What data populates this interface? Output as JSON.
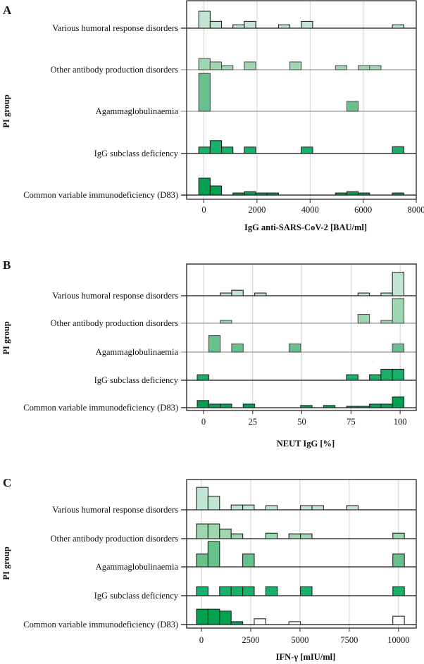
{
  "chart_data": [
    {
      "type": "histogram-ridgeline",
      "panel_label": "A",
      "xlabel": "IgG anti-SARS-CoV-2 [BAU/ml]",
      "ylabel": "PI group",
      "xlim": [
        -650,
        8000
      ],
      "xticks": [
        0,
        2000,
        4000,
        6000,
        8000
      ],
      "xtick_labels": [
        "0",
        "2000",
        "4000",
        "6000",
        "8000"
      ],
      "grid": "vertical",
      "bin_start": -193,
      "bin_width": 429,
      "rows": [
        {
          "label": "Various humoral response disorders",
          "color": "#c2e5d3",
          "line": "#111111",
          "bins": [
            [
              0,
              5
            ],
            [
              1,
              2
            ],
            [
              3,
              1
            ],
            [
              4,
              2
            ],
            [
              7,
              1
            ],
            [
              9,
              2
            ],
            [
              17,
              1
            ]
          ]
        },
        {
          "label": "Other antibody production disorders",
          "color": "#9ed6b0",
          "line": "#999999",
          "bins": [
            [
              0,
              3.3
            ],
            [
              1,
              2.3
            ],
            [
              2,
              1.2
            ],
            [
              4,
              2.3
            ],
            [
              8,
              2.3
            ],
            [
              12,
              1.2
            ],
            [
              14,
              1.2
            ],
            [
              15,
              1.2
            ]
          ]
        },
        {
          "label": "Agammaglobulinaemia",
          "color": "#66c18c",
          "line": "#999999",
          "bins": [
            [
              0,
              11.2
            ],
            [
              13,
              2.9
            ]
          ]
        },
        {
          "label": "IgG subclass deficiency",
          "color": "#19b06a",
          "line": "#111111",
          "bins": [
            [
              0,
              1.9
            ],
            [
              1,
              3.8
            ],
            [
              2,
              1.9
            ],
            [
              4,
              1.9
            ],
            [
              9,
              1.9
            ],
            [
              17,
              2
            ]
          ]
        },
        {
          "label": "Common variable immunodeficiency (D83)",
          "color": "#02a14f",
          "line": "#111111",
          "bins": [
            [
              0,
              5
            ],
            [
              1,
              2.7
            ],
            [
              3,
              0.6
            ],
            [
              4,
              1
            ],
            [
              5,
              0.6
            ],
            [
              6,
              0.6
            ],
            [
              12,
              0.6
            ],
            [
              13,
              1
            ],
            [
              14,
              0.6
            ],
            [
              17,
              0.6
            ]
          ]
        }
      ]
    },
    {
      "type": "histogram-ridgeline",
      "panel_label": "B",
      "xlabel": "NEUT IgG [%]",
      "ylabel": "PI group",
      "xlim": [
        -8.6,
        108.2
      ],
      "xticks": [
        0,
        25,
        50,
        75,
        100
      ],
      "xtick_labels": [
        "0",
        "25",
        "50",
        "75",
        "100"
      ],
      "grid": "vertical",
      "bin_start": -3.2,
      "bin_width": 5.84,
      "rows": [
        {
          "label": "Various humoral response disorders",
          "color": "#c2e5d3",
          "line": "#111111",
          "bins": [
            [
              2,
              1
            ],
            [
              3,
              2
            ],
            [
              5,
              1
            ],
            [
              14,
              1
            ],
            [
              16,
              1
            ],
            [
              17,
              8.5
            ]
          ]
        },
        {
          "label": "Other antibody production disorders",
          "color": "#9ed6b0",
          "line": "#999999",
          "bins": [
            [
              2,
              1
            ],
            [
              14,
              3.2
            ],
            [
              16,
              1
            ],
            [
              17,
              9
            ]
          ]
        },
        {
          "label": "Agammaglobulinaemia",
          "color": "#66c18c",
          "line": "#999999",
          "bins": [
            [
              1,
              6
            ],
            [
              3,
              3
            ],
            [
              8,
              3
            ],
            [
              17,
              3
            ]
          ]
        },
        {
          "label": "IgG subclass deficiency",
          "color": "#19b06a",
          "line": "#111111",
          "bins": [
            [
              0,
              2
            ],
            [
              13,
              2
            ],
            [
              15,
              2
            ],
            [
              16,
              4
            ],
            [
              17,
              4
            ]
          ]
        },
        {
          "label": "Common variable immunodeficiency (D83)",
          "color": "#02a14f",
          "line": "#111111",
          "bins": [
            [
              0,
              2.6
            ],
            [
              1,
              1.3
            ],
            [
              2,
              1.3
            ],
            [
              4,
              1.3
            ],
            [
              9,
              0.8
            ],
            [
              11,
              0.8
            ],
            [
              13,
              0.5
            ],
            [
              14,
              0.5
            ],
            [
              15,
              1.3
            ],
            [
              16,
              1.3
            ],
            [
              17,
              3.9
            ]
          ]
        }
      ]
    },
    {
      "type": "histogram-ridgeline",
      "panel_label": "C",
      "xlabel": "IFN-γ [mIU/ml]",
      "ylabel": "PI group",
      "xlim": [
        -750,
        10900
      ],
      "xticks": [
        0,
        2500,
        5000,
        7500,
        10000
      ],
      "xtick_labels": [
        "0",
        "2500",
        "5000",
        "7500",
        "10000"
      ],
      "grid": "vertical",
      "bin_start": -250,
      "bin_width": 586,
      "rows": [
        {
          "label": "Various humoral response disorders",
          "color": "#c2e5d3",
          "line": "#111111",
          "bins": [
            [
              0,
              7
            ],
            [
              1,
              4.2
            ],
            [
              3,
              1.5
            ],
            [
              4,
              1.5
            ],
            [
              6,
              1.3
            ],
            [
              9,
              1.3
            ],
            [
              10,
              1.3
            ],
            [
              13,
              1.3
            ]
          ]
        },
        {
          "label": "Other antibody production disorders",
          "color": "#9ed6b0",
          "line": "#111111",
          "bins": [
            [
              0,
              4.6
            ],
            [
              1,
              4.6
            ],
            [
              2,
              3
            ],
            [
              3,
              1.5
            ],
            [
              6,
              1.7
            ],
            [
              8,
              1.5
            ],
            [
              9,
              1.5
            ],
            [
              17,
              1.7
            ]
          ]
        },
        {
          "label": "Agammaglobulinaemia",
          "color": "#66c18c",
          "line": "#111111",
          "bins": [
            [
              0,
              4
            ],
            [
              1,
              7.9
            ],
            [
              4,
              4
            ],
            [
              17,
              4
            ]
          ]
        },
        {
          "label": "IgG subclass deficiency",
          "color": "#19b06a",
          "line": "#111111",
          "bins": [
            [
              0,
              2.8
            ],
            [
              2,
              2.8
            ],
            [
              3,
              2.8
            ],
            [
              4,
              2.8
            ],
            [
              6,
              2.8
            ],
            [
              9,
              2.8
            ],
            [
              17,
              2.8
            ]
          ]
        },
        {
          "label": "Common variable immunodeficiency (D83)",
          "color": "#02a14f",
          "line": "#111111",
          "bins": [
            [
              0,
              4.8
            ],
            [
              1,
              4.8
            ],
            [
              2,
              4.2
            ],
            [
              3,
              0.9
            ],
            [
              5,
              1.8,
              false
            ],
            [
              8,
              0.9,
              false
            ],
            [
              17,
              2.6,
              false
            ]
          ]
        }
      ]
    }
  ]
}
